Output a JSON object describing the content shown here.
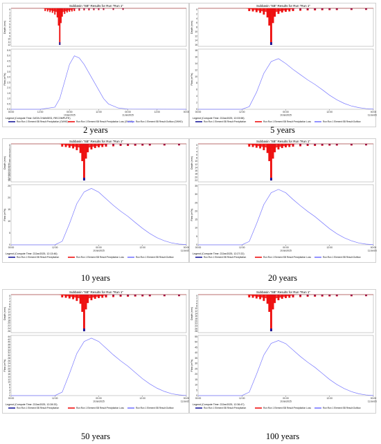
{
  "chart_data": [
    {
      "type": "line",
      "title": "Subbasin \"SB\" Results for Run \"Run 1\"",
      "caption": "2 years",
      "compute_line": "Legend (Compute Time: DATA CHANGED, RECOMPUTE)",
      "top_ylabel": "Depth (mm)",
      "top_yticks": [
        "0",
        "1",
        "2",
        "3",
        "4",
        "5",
        "6",
        "7",
        "8",
        "9",
        "10",
        "11",
        "12"
      ],
      "bottom_ylabel": "Flow (m³/s)",
      "bottom_yticks": [
        "0.0",
        "0.5",
        "1.0",
        "1.5",
        "2.0",
        "2.5",
        "3.0",
        "3.5",
        "4.0",
        "4.5",
        "5.0",
        "5.5"
      ],
      "ylim_bottom": [
        0,
        5.5
      ],
      "x_tick_labels": [
        "00:00",
        "12:00",
        "00:00",
        "12:00",
        "00:00",
        "12:00",
        "00:00"
      ],
      "date_labels": [
        "10Jan2025",
        "11Jan2025"
      ],
      "legend": [
        "Run:Run 1 Element:SB Result:Precipitation (GWHD)",
        "Run:Run 1 Element:SB Result:Precipitation Loss (GWHD)",
        "Run:Run 1 Element:SB Result:Outflow (GWHD)"
      ],
      "series": [
        {
          "name": "Outflow",
          "color": "#7777ff",
          "x": [
            0,
            12,
            18,
            20,
            22,
            24,
            26,
            28,
            30,
            32,
            34,
            36,
            38,
            40,
            44,
            48,
            72
          ],
          "values": [
            0.0,
            0.0,
            0.2,
            1.0,
            2.6,
            4.2,
            5.0,
            4.8,
            4.2,
            3.4,
            2.6,
            1.8,
            1.0,
            0.5,
            0.12,
            0.02,
            0.0
          ]
        }
      ],
      "hyetograph_peak_depth": 10.5
    },
    {
      "type": "line",
      "title": "Subbasin \"SB\" Results for Run \"Run 1\"",
      "caption": "5 years",
      "compute_line": "Legend (Compute Time: 22Jan2025, 12:03:58)",
      "top_ylabel": "Depth (mm)",
      "top_yticks": [
        "0",
        "2",
        "4",
        "6",
        "8",
        "10",
        "12",
        "14",
        "16"
      ],
      "bottom_ylabel": "Flow (m³/s)",
      "bottom_yticks": [
        "0",
        "2",
        "4",
        "6",
        "8",
        "10",
        "12",
        "14",
        "16",
        "18"
      ],
      "ylim_bottom": [
        0,
        18
      ],
      "x_tick_labels": [
        "00:00",
        "12:00",
        "00:00",
        "12:00",
        "00:00"
      ],
      "date_labels": [
        "10Jan2025",
        "11Jan2025"
      ],
      "legend": [
        "Run:Run 1 Element:SB Result:Precipitation",
        "Run:Run 1 Element:SB Result:Precipitation Loss",
        "Run:Run 1 Element:SB Result:Outflow"
      ],
      "series": [
        {
          "name": "Outflow",
          "color": "#7777ff",
          "x": [
            0,
            12,
            14,
            16,
            18,
            20,
            22,
            24,
            26,
            28,
            30,
            32,
            34,
            36,
            38,
            40,
            42,
            44,
            46,
            48
          ],
          "values": [
            0,
            0,
            0.8,
            5.2,
            11.0,
            14.6,
            15.5,
            14.0,
            12.2,
            10.6,
            9.0,
            7.6,
            6.0,
            4.3,
            2.9,
            1.8,
            1.0,
            0.5,
            0.2,
            0.05
          ]
        }
      ],
      "hyetograph_peak_depth": 14.0
    },
    {
      "type": "line",
      "title": "Subbasin \"SB\" Results for Run \"Run 1\"",
      "caption": "10 years",
      "compute_line": "Legend (Compute Time: 22Jan2025, 12:13:46)",
      "top_ylabel": "Depth (mm)",
      "top_yticks": [
        "0",
        "1",
        "2",
        "3",
        "4",
        "5",
        "6",
        "7",
        "8",
        "9",
        "10",
        "11",
        "12",
        "13",
        "14",
        "15",
        "16",
        "17",
        "18",
        "19"
      ],
      "bottom_ylabel": "Flow (m³/s)",
      "bottom_yticks": [
        "0",
        "5",
        "10",
        "15",
        "20",
        "25"
      ],
      "ylim_bottom": [
        0,
        25
      ],
      "x_tick_labels": [
        "00:00",
        "12:00",
        "00:00",
        "12:00",
        "00:00"
      ],
      "date_labels": [
        "10Jan2025",
        "11Jan2025"
      ],
      "legend": [
        "Run:Run 1 Element:SB Result:Precipitation",
        "Run:Run 1 Element:SB Result:Precipitation Loss",
        "Run:Run 1 Element:SB Result:Outflow"
      ],
      "series": [
        {
          "name": "Outflow",
          "color": "#7777ff",
          "x": [
            0,
            12,
            14,
            16,
            18,
            20,
            22,
            24,
            26,
            28,
            30,
            32,
            34,
            36,
            38,
            40,
            42,
            44,
            46,
            48
          ],
          "values": [
            0,
            0,
            1.5,
            9.0,
            17.5,
            22.5,
            24.0,
            22.4,
            19.6,
            16.8,
            14.3,
            12.1,
            9.5,
            7.0,
            4.8,
            3.0,
            1.7,
            0.8,
            0.3,
            0.1
          ]
        }
      ],
      "hyetograph_peak_depth": 19.0
    },
    {
      "type": "line",
      "title": "Subbasin \"SB\" Results for Run \"Run 1\"",
      "caption": "20 years",
      "compute_line": "Legend (Compute Time: 22Jan2025, 12:27:22)",
      "top_ylabel": "Depth (mm)",
      "top_yticks": [
        "0",
        "2",
        "4",
        "6",
        "8",
        "10",
        "12",
        "14",
        "16",
        "18",
        "20",
        "22"
      ],
      "bottom_ylabel": "Flow (m³/s)",
      "bottom_yticks": [
        "0",
        "5",
        "10",
        "15",
        "20",
        "25",
        "30",
        "35"
      ],
      "ylim_bottom": [
        0,
        35
      ],
      "x_tick_labels": [
        "00:00",
        "12:00",
        "00:00",
        "12:00",
        "00:00"
      ],
      "date_labels": [
        "10Jan2025",
        "11Jan2025"
      ],
      "legend": [
        "Run:Run 1 Element:SB Result:Precipitation",
        "Run:Run 1 Element:SB Result:Precipitation Loss",
        "Run:Run 1 Element:SB Result:Outflow"
      ],
      "series": [
        {
          "name": "Outflow",
          "color": "#7777ff",
          "x": [
            0,
            12,
            14,
            16,
            18,
            20,
            22,
            24,
            26,
            28,
            30,
            32,
            34,
            36,
            38,
            40,
            42,
            44,
            46,
            48
          ],
          "values": [
            0,
            0,
            2.0,
            12.5,
            24.0,
            31.0,
            33.0,
            31.0,
            27.0,
            23.3,
            19.9,
            16.8,
            13.2,
            9.6,
            6.6,
            4.2,
            2.4,
            1.1,
            0.4,
            0.1
          ]
        }
      ],
      "hyetograph_peak_depth": 22.0
    },
    {
      "type": "line",
      "title": "Subbasin \"SB\" Results for Run \"Run 1\"",
      "caption": "50 years",
      "compute_line": "Legend (Compute Time: 22Jan2025, 12:28:33)",
      "top_ylabel": "Depth (mm)",
      "top_yticks": [
        "0",
        "2",
        "4",
        "6",
        "8",
        "10",
        "12",
        "14",
        "16",
        "18",
        "20",
        "22",
        "24",
        "26"
      ],
      "bottom_ylabel": "Flow (m³/s)",
      "bottom_yticks": [
        "0",
        "2",
        "4",
        "6",
        "8",
        "10",
        "12",
        "14",
        "16",
        "18",
        "20",
        "22",
        "24",
        "26",
        "28",
        "30",
        "32",
        "34",
        "36",
        "38",
        "40",
        "42",
        "44"
      ],
      "ylim_bottom": [
        0,
        44
      ],
      "x_tick_labels": [
        "00:00",
        "12:00",
        "00:00",
        "12:00",
        "00:00"
      ],
      "date_labels": [
        "10Jan2025",
        "11Jan2025"
      ],
      "legend": [
        "Run:Run 1 Element:SB Result:Precipitation",
        "Run:Run 1 Element:SB Result:Precipitation Loss",
        "Run:Run 1 Element:SB Result:Outflow"
      ],
      "series": [
        {
          "name": "Outflow",
          "color": "#7777ff",
          "x": [
            0,
            12,
            14,
            16,
            18,
            20,
            22,
            24,
            26,
            28,
            30,
            32,
            34,
            36,
            38,
            40,
            42,
            44,
            46,
            48
          ],
          "values": [
            0,
            0,
            2.6,
            16.5,
            31.5,
            40.5,
            43.0,
            40.5,
            35.5,
            30.5,
            26.0,
            22.0,
            17.3,
            12.6,
            8.7,
            5.5,
            3.1,
            1.4,
            0.5,
            0.1
          ]
        }
      ],
      "hyetograph_peak_depth": 26.0
    },
    {
      "type": "line",
      "title": "Subbasin \"SB\" Results for Run \"Run 1\"",
      "caption": "100 years",
      "compute_line": "Legend (Compute Time: 22Jan2025, 12:36:47)",
      "top_ylabel": "Depth (mm)",
      "top_yticks": [
        "0",
        "2",
        "4",
        "6",
        "8",
        "10",
        "12",
        "14",
        "16",
        "18",
        "20",
        "22",
        "24",
        "26",
        "28"
      ],
      "bottom_ylabel": "Flow (m³/s)",
      "bottom_yticks": [
        "0",
        "5",
        "10",
        "15",
        "20",
        "25",
        "30",
        "35",
        "40",
        "45",
        "50",
        "55"
      ],
      "ylim_bottom": [
        0,
        55
      ],
      "x_tick_labels": [
        "00:00",
        "12:00",
        "00:00",
        "12:00",
        "00:00"
      ],
      "date_labels": [
        "10Jan2025",
        "11Jan2025"
      ],
      "legend": [
        "Run:Run 1 Element:SB Result:Precipitation",
        "Run:Run 1 Element:SB Result:Precipitation Loss",
        "Run:Run 1 Element:SB Result:Outflow"
      ],
      "series": [
        {
          "name": "Outflow",
          "color": "#7777ff",
          "x": [
            0,
            12,
            14,
            16,
            18,
            20,
            22,
            24,
            26,
            28,
            30,
            32,
            34,
            36,
            38,
            40,
            42,
            44,
            46,
            48
          ],
          "values": [
            0,
            0,
            3.2,
            20.0,
            38.0,
            48.8,
            51.5,
            48.6,
            42.6,
            36.6,
            31.2,
            26.4,
            20.8,
            15.1,
            10.4,
            6.6,
            3.7,
            1.7,
            0.6,
            0.1
          ]
        }
      ],
      "hyetograph_peak_depth": 28.0
    }
  ],
  "colors": {
    "precip": "#1a1a99",
    "loss": "#ee1111",
    "outflow": "#7777ff",
    "border_top": "#cc0000"
  }
}
